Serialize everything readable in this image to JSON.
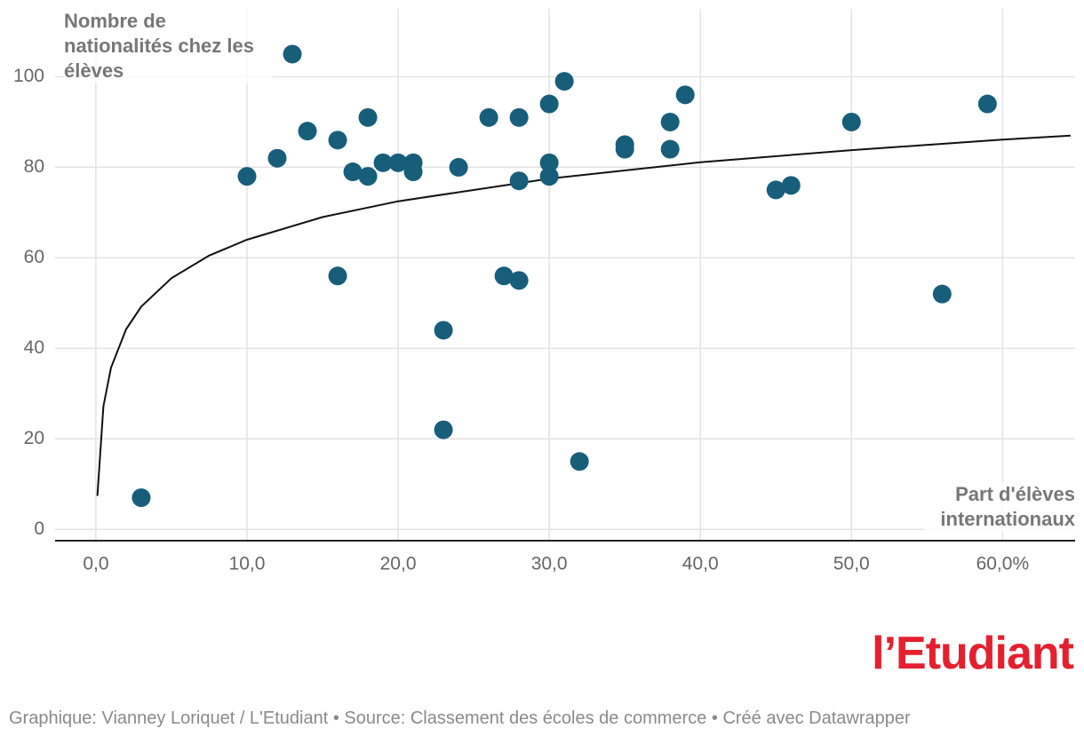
{
  "chart_data": {
    "type": "scatter",
    "y_label": "Nombre de nationalités chez les élèves",
    "x_label": "Part d'élèves internationaux",
    "logo": "l’Etudiant",
    "footer": "Graphique: Vianney Loriquet / L'Etudiant • Source: Classement des écoles de commerce • Créé avec Datawrapper",
    "color": "#175e7b",
    "grid": true,
    "xlim": [
      -2.7,
      64.8
    ],
    "ylim": [
      -2.5,
      115
    ],
    "xticks": [
      {
        "value": 0,
        "label": "0,0"
      },
      {
        "value": 10,
        "label": "10,0"
      },
      {
        "value": 20,
        "label": "20,0"
      },
      {
        "value": 30,
        "label": "30,0"
      },
      {
        "value": 40,
        "label": "40,0"
      },
      {
        "value": 50,
        "label": "50,0"
      },
      {
        "value": 60,
        "label": "60,0%"
      }
    ],
    "yticks": [
      0,
      20,
      40,
      60,
      80,
      100
    ],
    "x": [
      3,
      10,
      12,
      13,
      14,
      16,
      16,
      17,
      18,
      18,
      19,
      20,
      21,
      21,
      23,
      23,
      24,
      26,
      27,
      28,
      28,
      28,
      30,
      30,
      30,
      31,
      32,
      35,
      35,
      38,
      38,
      39,
      45,
      46,
      50,
      56,
      59
    ],
    "values": [
      7,
      78,
      82,
      105,
      88,
      86,
      56,
      79,
      91,
      78,
      81,
      81,
      81,
      79,
      44,
      22,
      80,
      91,
      56,
      91,
      77,
      55,
      94,
      81,
      78,
      99,
      15,
      85,
      84,
      90,
      84,
      96,
      75,
      76,
      90,
      52,
      94
    ],
    "trendline": {
      "color": "#111111",
      "x": [
        0.1,
        0.5,
        1,
        2,
        3,
        5,
        7.5,
        10,
        15,
        20,
        30,
        40,
        50,
        60,
        64.5
      ],
      "values": [
        7.4,
        27.2,
        35.7,
        44.2,
        49.2,
        55.5,
        60.5,
        64.0,
        69.0,
        72.5,
        77.5,
        81.1,
        83.8,
        86.1,
        87.0
      ]
    }
  }
}
